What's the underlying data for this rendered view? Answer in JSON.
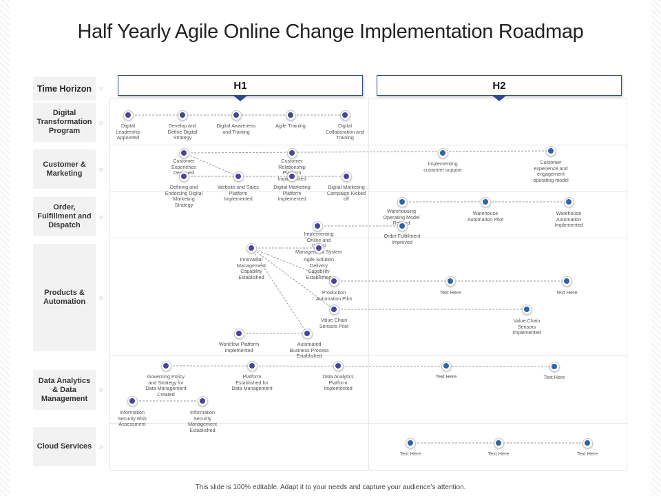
{
  "title": "Half Yearly Agile Online Change Implementation Roadmap",
  "footer": "This slide is 100% editable. Adapt it to your needs and capture your audience’s attention.",
  "colors": {
    "phase_border": "#2e4a8c",
    "node_purple": "#47469a",
    "node_blue": "#2c65a8",
    "row_label_bg": "#f2f2f2"
  },
  "halves": [
    "H1",
    "H2"
  ],
  "rows": [
    {
      "label": "Time Horizon"
    },
    {
      "label": "Digital Transformation Program"
    },
    {
      "label": "Customer & Marketing"
    },
    {
      "label": "Order, Fulfillment and Dispatch"
    },
    {
      "label": "Products & Automation"
    },
    {
      "label": "Data Analytics & Data Management"
    },
    {
      "label": "Cloud Services"
    }
  ],
  "milestones": [
    {
      "label": "Digital Leadership Appointed"
    },
    {
      "label": "Develop and Define Digital Strategy"
    },
    {
      "label": "Digital Awareness and Training"
    },
    {
      "label": "Agile Training"
    },
    {
      "label": "Digital Collaboration and Training"
    },
    {
      "label": "Customer Experience Designed"
    },
    {
      "label": "Customer Relationship Platform Implemented"
    },
    {
      "label": "Implementing customer support"
    },
    {
      "label": "Customer experience and engagement operating model"
    },
    {
      "label": "Defining and Endorsing Digital Marketing Strategy"
    },
    {
      "label": "Website and Sales Platform Implemented"
    },
    {
      "label": "Digital Marketing Platform Implemented"
    },
    {
      "label": "Digital Marketing Campaign Kicked off"
    },
    {
      "label": "Warehousing Operating Model Refined"
    },
    {
      "label": "Warehouse Automation Pilot"
    },
    {
      "label": "Warehouse Automation Implemented"
    },
    {
      "label": "Implementing Online and Digital Management System"
    },
    {
      "label": "Order Fulfillment Improved"
    },
    {
      "label": "Innovation Management Capability Established"
    },
    {
      "label": "Agile Solution Delivery Capability Established"
    },
    {
      "label": "Production Automation Pilot"
    },
    {
      "label": "Text Here"
    },
    {
      "label": "Text Here"
    },
    {
      "label": "Value Chain Sensors Pilot"
    },
    {
      "label": "Value Chain Sensors Implemented"
    },
    {
      "label": "Workflow Platform Implemented"
    },
    {
      "label": "Automated Business Process Established"
    },
    {
      "label": "Governing Policy and Strategy for Data Management Created"
    },
    {
      "label": "Platform Established for Data Management"
    },
    {
      "label": "Data Analytics Platform Implemented"
    },
    {
      "label": "Text Here"
    },
    {
      "label": "Text Here"
    },
    {
      "label": "Information Security Risk Assessment"
    },
    {
      "label": "Information Security Management Established"
    },
    {
      "label": "Text Here"
    },
    {
      "label": "Text Here"
    },
    {
      "label": "Text Here"
    }
  ]
}
